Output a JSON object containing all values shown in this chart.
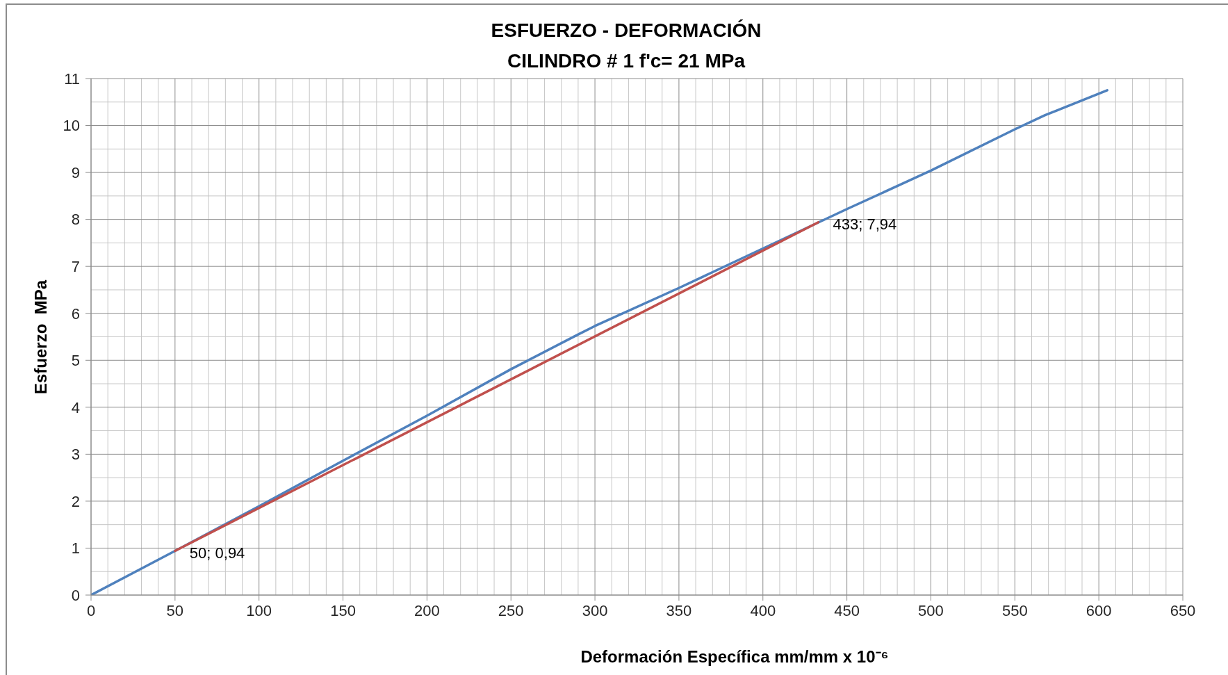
{
  "chart_data": {
    "type": "line",
    "title": "ESFUERZO - DEFORMACIÓN",
    "subtitle": "CILINDRO # 1 f'c= 21 MPa",
    "xlabel": "Deformación Específica mm/mm x 10⁻⁶",
    "ylabel": "Esfuerzo  MPa",
    "series": [
      {
        "color": "#4f81bd",
        "x": [
          0,
          50,
          100,
          150,
          200,
          250,
          290,
          300,
          350,
          400,
          450,
          500,
          550,
          568,
          605
        ],
        "values": [
          0,
          0.94,
          1.89,
          2.86,
          3.82,
          4.81,
          5.55,
          5.73,
          6.54,
          7.38,
          8.22,
          9.04,
          9.92,
          10.22,
          10.75
        ]
      },
      {
        "color": "#c0504d",
        "x": [
          50,
          433
        ],
        "values": [
          0.94,
          7.94
        ]
      }
    ],
    "xlim": [
      0,
      650
    ],
    "xticks": [
      0,
      50,
      100,
      150,
      200,
      250,
      300,
      350,
      400,
      450,
      500,
      550,
      600,
      650
    ],
    "ylim": [
      0,
      11
    ],
    "yticks": [
      0,
      1,
      2,
      3,
      4,
      5,
      6,
      7,
      8,
      9,
      10,
      11
    ],
    "grid": true,
    "annotations": [
      {
        "text": "50; 0,94",
        "x": 50,
        "y": 0.94
      },
      {
        "text": "433; 7,94",
        "x": 433,
        "y": 7.94
      }
    ]
  }
}
